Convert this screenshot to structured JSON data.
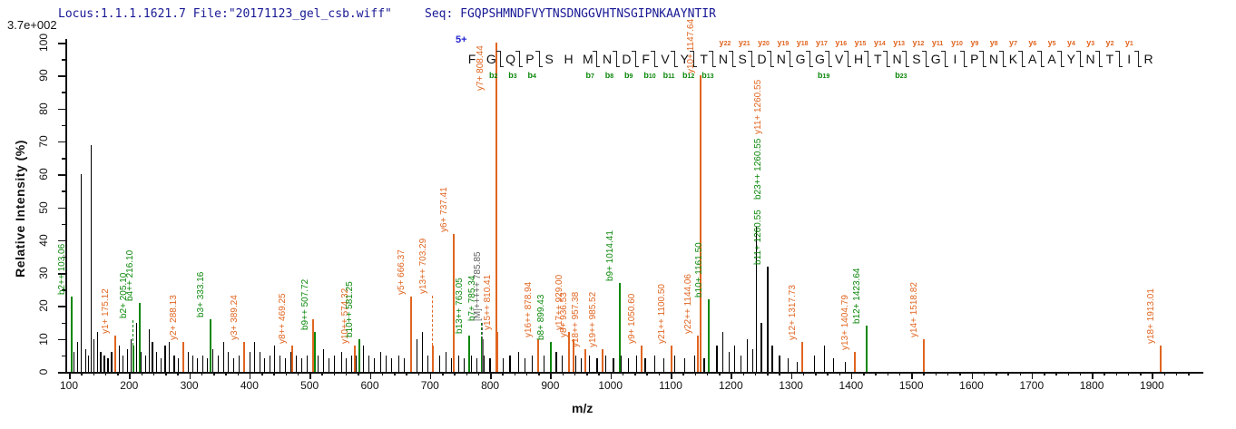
{
  "header": {
    "locus_file": "Locus:1.1.1.1621.7 File:\"20171123_gel_csb.wiff\"",
    "seq_line": "Seq: FGQPSHMNDFVYTNSDNGGVHTNSGIPNKAAYNTIR",
    "max_intensity": "3.7e+002",
    "precursor_charge": "5+"
  },
  "axes": {
    "x_label": "m/z",
    "y_label": "Relative  Intensity (%)",
    "x_min": 100,
    "x_max": 1960,
    "x_major_step": 100,
    "x_minor_step": 20,
    "x_last_label": 1900,
    "y_min": 0,
    "y_max": 100,
    "y_major_step": 10,
    "y_minor_step": 5
  },
  "colors": {
    "y_ion": "#e06520",
    "b_ion": "#0a870a",
    "neutral_peak": "#000000",
    "precursor_label": "#606060",
    "header_text": "#181895",
    "sequence_text": "#111111"
  },
  "sequence_annotation": {
    "residues": [
      "F",
      "G",
      "Q",
      "P",
      "S",
      "H",
      "M",
      "N",
      "D",
      "F",
      "V",
      "Y",
      "T",
      "N",
      "S",
      "D",
      "N",
      "G",
      "G",
      "V",
      "H",
      "T",
      "N",
      "S",
      "G",
      "I",
      "P",
      "N",
      "K",
      "A",
      "A",
      "Y",
      "N",
      "T",
      "I",
      "R"
    ],
    "y_ion_gaps": [
      {
        "after": 14,
        "label": "y22"
      },
      {
        "after": 15,
        "label": "y21"
      },
      {
        "after": 16,
        "label": "y20"
      },
      {
        "after": 17,
        "label": "y19"
      },
      {
        "after": 18,
        "label": "y18"
      },
      {
        "after": 19,
        "label": "y17"
      },
      {
        "after": 20,
        "label": "y16"
      },
      {
        "after": 21,
        "label": "y15"
      },
      {
        "after": 22,
        "label": "y14"
      },
      {
        "after": 23,
        "label": "y13"
      },
      {
        "after": 24,
        "label": "y12"
      },
      {
        "after": 25,
        "label": "y11"
      },
      {
        "after": 26,
        "label": "y10"
      },
      {
        "after": 27,
        "label": "y9"
      },
      {
        "after": 28,
        "label": "y8"
      },
      {
        "after": 29,
        "label": "y7"
      },
      {
        "after": 30,
        "label": "y6"
      },
      {
        "after": 31,
        "label": "y5"
      },
      {
        "after": 32,
        "label": "y4"
      },
      {
        "after": 33,
        "label": "y3"
      },
      {
        "after": 34,
        "label": "y2"
      },
      {
        "after": 35,
        "label": "y1"
      }
    ],
    "b_ion_gaps": [
      {
        "after": 2,
        "label": "b2"
      },
      {
        "after": 3,
        "label": "b3"
      },
      {
        "after": 4,
        "label": "b4"
      },
      {
        "after": 7,
        "label": "b7"
      },
      {
        "after": 8,
        "label": "b8"
      },
      {
        "after": 9,
        "label": "b9"
      },
      {
        "after": 10,
        "label": "b10"
      },
      {
        "after": 11,
        "label": "b11"
      },
      {
        "after": 12,
        "label": "b12"
      },
      {
        "after": 13,
        "label": "b13"
      },
      {
        "after": 19,
        "label": "b19"
      },
      {
        "after": 23,
        "label": "b23"
      }
    ]
  },
  "chart_data": {
    "type": "bar",
    "subtype": "ms2_fragmentation_spectrum",
    "title": "",
    "xlabel": "m/z",
    "ylabel": "Relative  Intensity (%)",
    "xlim": [
      100,
      1960
    ],
    "ylim": [
      0,
      100
    ],
    "max_intensity_counts": "3.7e+002",
    "labeled_peaks": [
      {
        "mz": 103.06,
        "pct": 23,
        "c": "b",
        "lab": "b2++ 103.06"
      },
      {
        "mz": 175.12,
        "pct": 11,
        "c": "y",
        "lab": "y1+ 175.12"
      },
      {
        "mz": 205.1,
        "pct": 8,
        "c": "b",
        "lab": "b2+ 205.10",
        "dash": 28
      },
      {
        "mz": 216.1,
        "pct": 21,
        "c": "b",
        "lab": "b4++ 216.10"
      },
      {
        "mz": 288.13,
        "pct": 9,
        "c": "y",
        "lab": "y2+ 288.13"
      },
      {
        "mz": 333.16,
        "pct": 16,
        "c": "b",
        "lab": "b3+ 333.16"
      },
      {
        "mz": 389.24,
        "pct": 9,
        "c": "y",
        "lab": "y3+ 389.24"
      },
      {
        "mz": 469.25,
        "pct": 8,
        "c": "y",
        "lab": "y8++ 469.25"
      },
      {
        "mz": 504.3,
        "pct": 16,
        "c": "y",
        "lab": ""
      },
      {
        "mz": 507.72,
        "pct": 12,
        "c": "b",
        "lab": "b9++ 507.72"
      },
      {
        "mz": 574.32,
        "pct": 8,
        "c": "y",
        "lab": "y10++ 574.32"
      },
      {
        "mz": 581.25,
        "pct": 10,
        "c": "b",
        "lab": "b10++ 581.25"
      },
      {
        "mz": 666.37,
        "pct": 23,
        "c": "y",
        "lab": "y5+ 666.37"
      },
      {
        "mz": 703.29,
        "pct": 8,
        "c": "y",
        "lab": "y13++ 703.29",
        "dash": 55
      },
      {
        "mz": 737.41,
        "pct": 42,
        "c": "y",
        "lab": "y6+ 737.41"
      },
      {
        "mz": 763.05,
        "pct": 11,
        "c": "b",
        "lab": "b13++ 763.05"
      },
      {
        "mz": 785.34,
        "pct": 10,
        "c": "b",
        "lab": "b7+ 785.34",
        "dash": 18
      },
      {
        "mz": 785.85,
        "pct": 10,
        "c": "m",
        "lab": "[M]+++++ 785.85",
        "dash": 18,
        "dx": 5
      },
      {
        "mz": 808.44,
        "pct": 100,
        "c": "y",
        "lab": "y7+ 808.44",
        "dx": -7,
        "dy": 55
      },
      {
        "mz": 810.41,
        "pct": 12,
        "c": "y",
        "lab": "y15++ 810.41"
      },
      {
        "mz": 878.94,
        "pct": 10,
        "c": "y",
        "lab": "y16++ 878.94"
      },
      {
        "mz": 899.43,
        "pct": 9,
        "c": "b",
        "lab": "b8+ 899.43"
      },
      {
        "mz": 929.0,
        "pct": 12,
        "c": "y",
        "lab": "y17++ 929.00"
      },
      {
        "mz": 936.53,
        "pct": 10,
        "c": "y",
        "lab": "y8+ 936.53"
      },
      {
        "mz": 957.38,
        "pct": 7,
        "c": "y",
        "lab": "y18++ 957.38"
      },
      {
        "mz": 985.52,
        "pct": 7,
        "c": "y",
        "lab": "y19++ 985.52"
      },
      {
        "mz": 1014.41,
        "pct": 27,
        "c": "b",
        "lab": "b9+ 1014.41"
      },
      {
        "mz": 1050.6,
        "pct": 8,
        "c": "y",
        "lab": "y9+ 1050.60"
      },
      {
        "mz": 1100.5,
        "pct": 8,
        "c": "y",
        "lab": "y21++ 1100.50"
      },
      {
        "mz": 1144.06,
        "pct": 11,
        "c": "y",
        "lab": "y22++ 1144.06"
      },
      {
        "mz": 1147.64,
        "pct": 90,
        "c": "y",
        "lab": "y10+ 1147.64"
      },
      {
        "mz": 1161.5,
        "pct": 22,
        "c": "b",
        "lab": "b10+ 1161.50"
      },
      {
        "mz": 1260.55,
        "pct": 32,
        "c": "k",
        "labels": [
          {
            "t": "b11+ 1260.55",
            "c": "b"
          },
          {
            "t": "b23++ 1260.55",
            "c": "b"
          },
          {
            "t": "y11+ 1260.55",
            "c": "y"
          }
        ]
      },
      {
        "mz": 1317.73,
        "pct": 9,
        "c": "y",
        "lab": "y12+ 1317.73"
      },
      {
        "mz": 1404.79,
        "pct": 6,
        "c": "y",
        "lab": "y13+ 1404.79"
      },
      {
        "mz": 1423.64,
        "pct": 14,
        "c": "b",
        "lab": "b12+ 1423.64"
      },
      {
        "mz": 1518.82,
        "pct": 10,
        "c": "y",
        "lab": "y14+ 1518.82"
      },
      {
        "mz": 1913.01,
        "pct": 8,
        "c": "y",
        "lab": "y18+ 1913.01"
      }
    ],
    "background_peaks": [
      [
        108,
        6
      ],
      [
        114,
        9
      ],
      [
        120,
        60
      ],
      [
        127,
        7
      ],
      [
        132,
        5
      ],
      [
        136,
        69
      ],
      [
        141,
        10
      ],
      [
        147,
        12
      ],
      [
        152,
        6
      ],
      [
        158,
        5
      ],
      [
        164,
        4
      ],
      [
        170,
        6
      ],
      [
        183,
        8
      ],
      [
        189,
        5
      ],
      [
        196,
        7
      ],
      [
        202,
        10
      ],
      [
        212,
        15
      ],
      [
        219,
        6
      ],
      [
        226,
        5
      ],
      [
        232,
        13
      ],
      [
        238,
        9
      ],
      [
        245,
        6
      ],
      [
        252,
        4
      ],
      [
        259,
        8
      ],
      [
        266,
        9
      ],
      [
        274,
        5
      ],
      [
        281,
        4
      ],
      [
        290,
        5
      ],
      [
        297,
        6
      ],
      [
        305,
        5
      ],
      [
        313,
        4
      ],
      [
        321,
        5
      ],
      [
        329,
        4
      ],
      [
        338,
        7
      ],
      [
        347,
        5
      ],
      [
        356,
        9
      ],
      [
        364,
        6
      ],
      [
        373,
        4
      ],
      [
        382,
        5
      ],
      [
        391,
        4
      ],
      [
        400,
        6
      ],
      [
        408,
        9
      ],
      [
        416,
        6
      ],
      [
        424,
        4
      ],
      [
        433,
        5
      ],
      [
        441,
        8
      ],
      [
        450,
        5
      ],
      [
        459,
        4
      ],
      [
        468,
        6
      ],
      [
        477,
        5
      ],
      [
        486,
        4
      ],
      [
        495,
        5
      ],
      [
        513,
        5
      ],
      [
        522,
        7
      ],
      [
        531,
        4
      ],
      [
        540,
        5
      ],
      [
        552,
        6
      ],
      [
        560,
        4
      ],
      [
        569,
        5
      ],
      [
        577,
        5
      ],
      [
        589,
        8
      ],
      [
        598,
        5
      ],
      [
        607,
        4
      ],
      [
        617,
        6
      ],
      [
        626,
        5
      ],
      [
        635,
        4
      ],
      [
        647,
        5
      ],
      [
        656,
        4
      ],
      [
        668,
        6
      ],
      [
        678,
        10
      ],
      [
        687,
        12
      ],
      [
        696,
        5
      ],
      [
        705,
        4
      ],
      [
        715,
        5
      ],
      [
        726,
        6
      ],
      [
        735,
        4
      ],
      [
        747,
        5
      ],
      [
        756,
        4
      ],
      [
        768,
        5
      ],
      [
        777,
        4
      ],
      [
        789,
        5
      ],
      [
        799,
        4
      ],
      [
        811,
        5
      ],
      [
        821,
        4
      ],
      [
        832,
        5
      ],
      [
        846,
        6
      ],
      [
        857,
        4
      ],
      [
        869,
        5
      ],
      [
        879,
        4
      ],
      [
        889,
        5
      ],
      [
        900,
        4
      ],
      [
        909,
        6
      ],
      [
        919,
        5
      ],
      [
        930,
        4
      ],
      [
        942,
        5
      ],
      [
        951,
        4
      ],
      [
        964,
        5
      ],
      [
        977,
        4
      ],
      [
        991,
        5
      ],
      [
        1004,
        4
      ],
      [
        1017,
        5
      ],
      [
        1029,
        4
      ],
      [
        1043,
        5
      ],
      [
        1057,
        4
      ],
      [
        1073,
        5
      ],
      [
        1088,
        4
      ],
      [
        1106,
        5
      ],
      [
        1122,
        4
      ],
      [
        1139,
        5
      ],
      [
        1155,
        4
      ],
      [
        1176,
        8
      ],
      [
        1186,
        12
      ],
      [
        1196,
        6
      ],
      [
        1206,
        8
      ],
      [
        1216,
        5
      ],
      [
        1226,
        10
      ],
      [
        1235,
        7
      ],
      [
        1242,
        44
      ],
      [
        1250,
        15
      ],
      [
        1268,
        8
      ],
      [
        1280,
        5
      ],
      [
        1295,
        4
      ],
      [
        1310,
        3
      ],
      [
        1338,
        5
      ],
      [
        1355,
        8
      ],
      [
        1370,
        4
      ],
      [
        1390,
        3
      ]
    ]
  }
}
